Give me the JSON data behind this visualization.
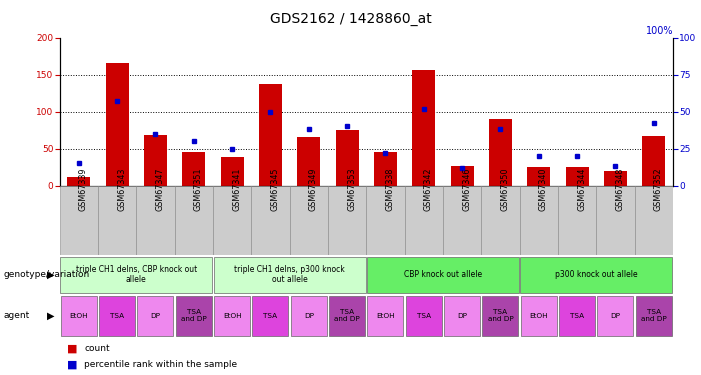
{
  "title": "GDS2162 / 1428860_at",
  "samples": [
    "GSM67339",
    "GSM67343",
    "GSM67347",
    "GSM67351",
    "GSM67341",
    "GSM67345",
    "GSM67349",
    "GSM67353",
    "GSM67338",
    "GSM67342",
    "GSM67346",
    "GSM67350",
    "GSM67340",
    "GSM67344",
    "GSM67348",
    "GSM67352"
  ],
  "counts": [
    12,
    165,
    68,
    46,
    38,
    137,
    65,
    75,
    45,
    156,
    26,
    90,
    25,
    25,
    20,
    67
  ],
  "percentiles": [
    15,
    57,
    35,
    30,
    25,
    50,
    38,
    40,
    22,
    52,
    12,
    38,
    20,
    20,
    13,
    42
  ],
  "ylim_left": [
    0,
    200
  ],
  "ylim_right": [
    0,
    100
  ],
  "yticks_left": [
    0,
    50,
    100,
    150,
    200
  ],
  "yticks_right": [
    0,
    25,
    50,
    75,
    100
  ],
  "bar_color": "#cc0000",
  "dot_color": "#0000cc",
  "genotype_groups": [
    {
      "label": "triple CH1 delns, CBP knock out\nallele",
      "start": 0,
      "end": 4,
      "color": "#ccffcc"
    },
    {
      "label": "triple CH1 delns, p300 knock\nout allele",
      "start": 4,
      "end": 8,
      "color": "#ccffcc"
    },
    {
      "label": "CBP knock out allele",
      "start": 8,
      "end": 12,
      "color": "#66ee66"
    },
    {
      "label": "p300 knock out allele",
      "start": 12,
      "end": 16,
      "color": "#66ee66"
    }
  ],
  "agent_labels": [
    "EtOH",
    "TSA",
    "DP",
    "TSA\nand DP",
    "EtOH",
    "TSA",
    "DP",
    "TSA\nand DP",
    "EtOH",
    "TSA",
    "DP",
    "TSA\nand DP",
    "EtOH",
    "TSA",
    "DP",
    "TSA\nand DP"
  ],
  "agent_colors": [
    "#ee88ee",
    "#dd44dd",
    "#ee88ee",
    "#aa44aa",
    "#ee88ee",
    "#dd44dd",
    "#ee88ee",
    "#aa44aa",
    "#ee88ee",
    "#dd44dd",
    "#ee88ee",
    "#aa44aa",
    "#ee88ee",
    "#dd44dd",
    "#ee88ee",
    "#aa44aa"
  ],
  "legend_count_color": "#cc0000",
  "legend_pct_color": "#0000cc",
  "title_fontsize": 10,
  "tick_fontsize": 6.5,
  "label_fontsize": 7
}
